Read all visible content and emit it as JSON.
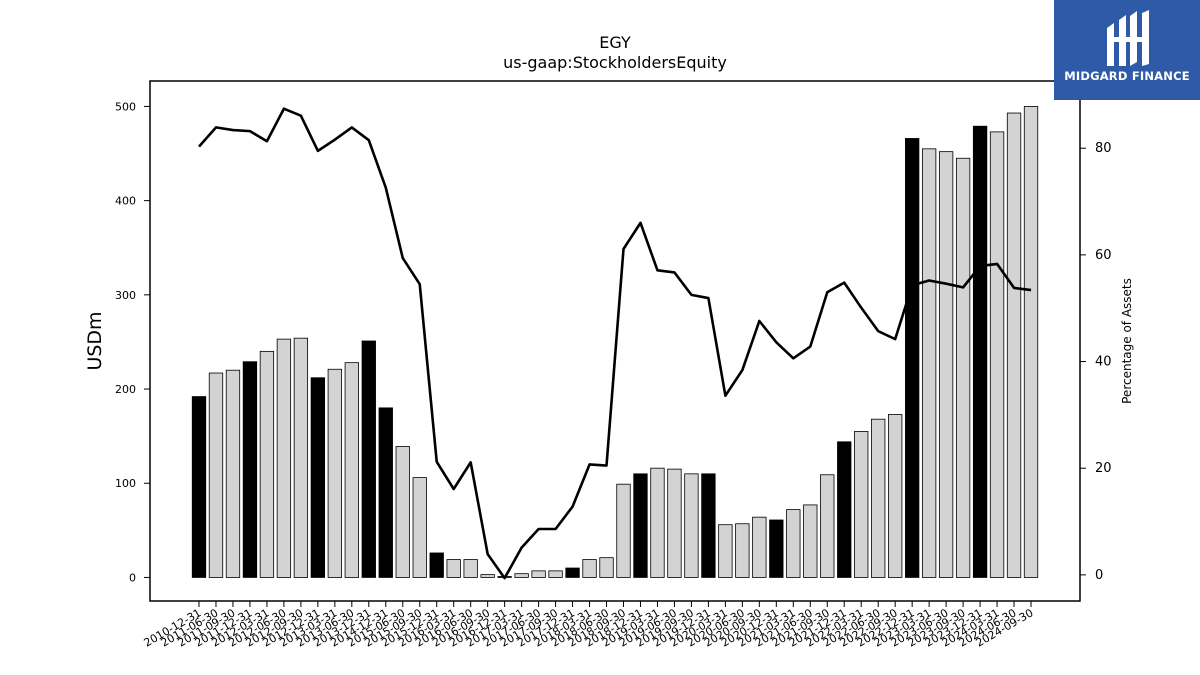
{
  "brand": {
    "name": "MIDGARD FINANCE",
    "color": "#2f5aa8",
    "icon": "midgard-logo-icon"
  },
  "chart_data": {
    "type": "bar",
    "title": "EGY",
    "subtitle": "us-gaap:StockholdersEquity",
    "ylabel": "USDm",
    "y2label": "Percentage of Assets",
    "ylim": [
      -25,
      527
    ],
    "y2lim": [
      -4.9,
      92.6
    ],
    "yticks": [
      0,
      100,
      200,
      300,
      400,
      500
    ],
    "y2ticks": [
      0,
      20,
      40,
      60,
      80
    ],
    "grid": false,
    "bar_colors": {
      "annual": "#000000",
      "quarterly": "#d3d3d3"
    },
    "categories": [
      "2010-12-31",
      "2011-06-30",
      "2011-09-30",
      "2011-12-31",
      "2012-03-31",
      "2012-06-30",
      "2012-09-30",
      "2012-12-31",
      "2013-03-31",
      "2013-06-30",
      "2013-12-31",
      "2014-12-31",
      "2015-06-30",
      "2015-09-30",
      "2015-12-31",
      "2016-03-31",
      "2016-06-30",
      "2016-09-30",
      "2016-12-31",
      "2017-03-31",
      "2017-06-30",
      "2017-09-30",
      "2017-12-31",
      "2018-03-31",
      "2018-06-30",
      "2018-09-30",
      "2018-12-31",
      "2019-03-31",
      "2019-06-30",
      "2019-09-30",
      "2019-12-31",
      "2020-03-31",
      "2020-06-30",
      "2020-09-30",
      "2020-12-31",
      "2021-03-31",
      "2021-06-30",
      "2021-09-30",
      "2021-12-31",
      "2022-03-31",
      "2022-06-30",
      "2022-09-30",
      "2022-12-31",
      "2023-03-31",
      "2023-06-30",
      "2023-09-30",
      "2023-12-31",
      "2024-03-31",
      "2024-06-30",
      "2024-09-30"
    ],
    "annual": [
      true,
      false,
      false,
      true,
      false,
      false,
      false,
      true,
      false,
      false,
      true,
      true,
      false,
      false,
      true,
      false,
      false,
      false,
      true,
      false,
      false,
      false,
      true,
      false,
      false,
      false,
      true,
      false,
      false,
      false,
      true,
      false,
      false,
      false,
      true,
      false,
      false,
      false,
      true,
      false,
      false,
      false,
      true,
      false,
      false,
      false,
      true,
      false,
      false,
      false
    ],
    "series": [
      {
        "name": "USDm",
        "axis": "left",
        "kind": "bar",
        "values": [
          192,
          217,
          220,
          229,
          240,
          253,
          254,
          212,
          221,
          228,
          251,
          180,
          139,
          106,
          26,
          19,
          19,
          3,
          1,
          4,
          7,
          7,
          10,
          19,
          21,
          99,
          110,
          116,
          115,
          110,
          110,
          56,
          57,
          64,
          61,
          72,
          77,
          109,
          144,
          155,
          168,
          173,
          466,
          455,
          452,
          445,
          479,
          473,
          493,
          500
        ]
      },
      {
        "name": "Percentage of Assets",
        "axis": "right",
        "kind": "line",
        "color": "#000000",
        "values": [
          80.3,
          83.9,
          83.4,
          83.2,
          81.3,
          87.4,
          86.1,
          79.5,
          81.6,
          83.9,
          81.5,
          72.6,
          59.4,
          54.5,
          21.2,
          16.1,
          21.1,
          3.9,
          -0.6,
          5.1,
          8.6,
          8.6,
          12.8,
          20.7,
          20.5,
          61.1,
          66.0,
          57.1,
          56.7,
          52.5,
          51.9,
          33.6,
          38.4,
          47.6,
          43.6,
          40.6,
          42.8,
          53.0,
          54.8,
          50.1,
          45.7,
          44.2,
          54.3,
          55.2,
          54.6,
          53.9,
          57.9,
          58.3,
          53.8,
          53.4
        ]
      }
    ]
  }
}
